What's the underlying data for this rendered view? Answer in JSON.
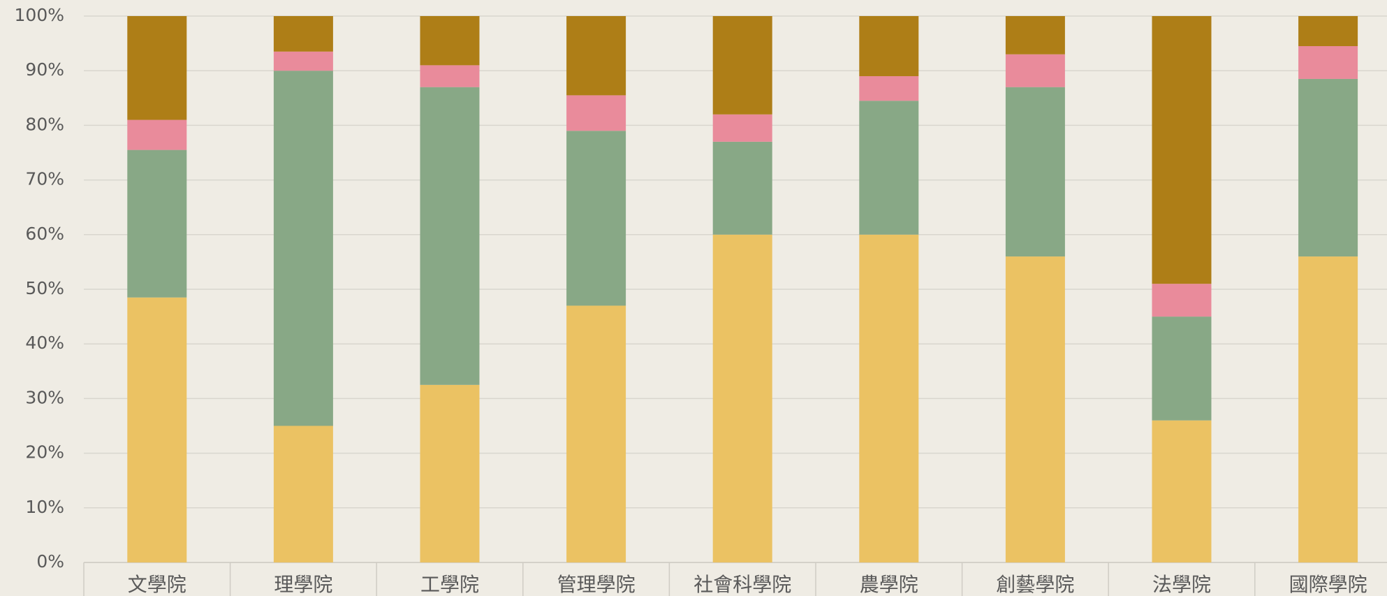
{
  "chart_data": {
    "type": "stacked_bar",
    "categories": [
      "文學院",
      "理學院",
      "工學院",
      "管理學院",
      "社會科學院",
      "農學院",
      "創藝學院",
      "法學院",
      "國際學院"
    ],
    "series": [
      {
        "color": "#ebc263",
        "values": [
          48.5,
          25,
          32.5,
          47,
          60,
          60,
          56,
          26,
          56
        ]
      },
      {
        "color": "#88a886",
        "values": [
          27,
          65,
          54.5,
          32,
          17,
          24.5,
          31,
          19,
          32.5
        ]
      },
      {
        "color": "#e98b9b",
        "values": [
          5.5,
          3.5,
          4,
          6.5,
          5,
          4.5,
          6,
          6,
          6
        ]
      },
      {
        "color": "#ae7e17",
        "values": [
          19,
          6.5,
          9,
          14.5,
          18,
          11,
          7,
          49,
          5.5
        ]
      }
    ],
    "ylim": [
      0,
      100
    ],
    "yticks": [
      {
        "value": 0,
        "label": "0%"
      },
      {
        "value": 10,
        "label": "10%"
      },
      {
        "value": 20,
        "label": "20%"
      },
      {
        "value": 30,
        "label": "30%"
      },
      {
        "value": 40,
        "label": "40%"
      },
      {
        "value": 50,
        "label": "50%"
      },
      {
        "value": 60,
        "label": "60%"
      },
      {
        "value": 70,
        "label": "70%"
      },
      {
        "value": 80,
        "label": "80%"
      },
      {
        "value": 90,
        "label": "90%"
      },
      {
        "value": 100,
        "label": "100%"
      }
    ],
    "grid": true
  }
}
